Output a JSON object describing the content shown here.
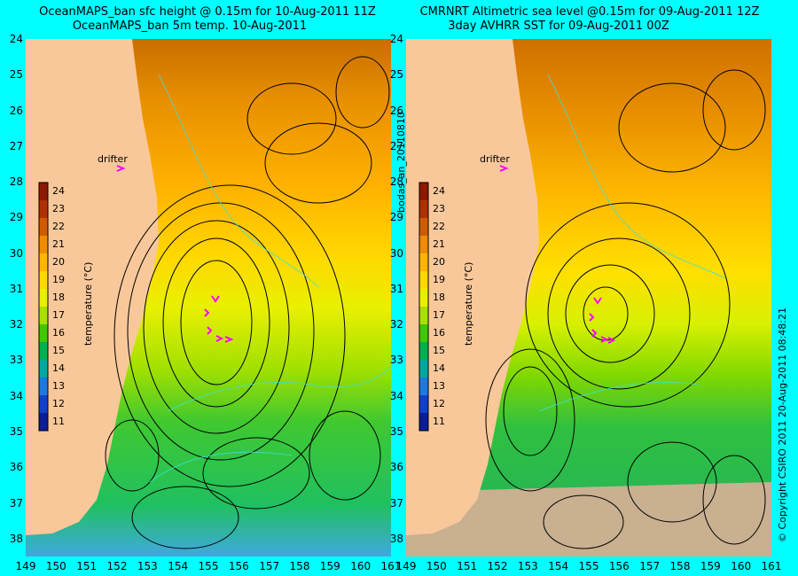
{
  "left_panel": {
    "title_line1": "OceanMAPS_ban sfc height @ 0.15m for 10-Aug-2011 11Z",
    "title_line2": "OceanMAPS_ban 5m temp. 10-Aug-2011"
  },
  "right_panel": {
    "title_line1": "CMRNRT Altimetric sea level  @0.15m  for 09-Aug-2011 12Z",
    "title_line2": "3day AVHRR SST for 09-Aug-2011 00Z"
  },
  "center_label": "bodas_an_20110810",
  "right_label": "© Copyright CSIRO 2011   20-Aug-2011 08:48:21",
  "drifter_label": "drifter",
  "colorbar": {
    "unit_label": "temperature (°C)",
    "ticks": [
      "24",
      "23",
      "22",
      "21",
      "20",
      "19",
      "18",
      "17",
      "16",
      "15",
      "14",
      "13",
      "12",
      "11"
    ],
    "colors": [
      "#8b1a00",
      "#b03000",
      "#d05a00",
      "#f08c00",
      "#ffb400",
      "#ffd800",
      "#e8f000",
      "#a8e000",
      "#40c800",
      "#00b050",
      "#00a8a0",
      "#1e78e0",
      "#1040c8",
      "#0a1e96"
    ]
  },
  "y_ticks": [
    "24",
    "25",
    "26",
    "27",
    "28",
    "29",
    "30",
    "31",
    "32",
    "33",
    "34",
    "35",
    "36",
    "37",
    "38"
  ],
  "x_ticks": [
    "149",
    "150",
    "151",
    "152",
    "153",
    "154",
    "155",
    "156",
    "157",
    "158",
    "159",
    "160",
    "161"
  ],
  "colors": {
    "background": "#00ffff",
    "land": "#f9c89a",
    "drifter_marker": "#ff00ff",
    "contour": "#000000",
    "sst_contour": "#40e0d0"
  }
}
